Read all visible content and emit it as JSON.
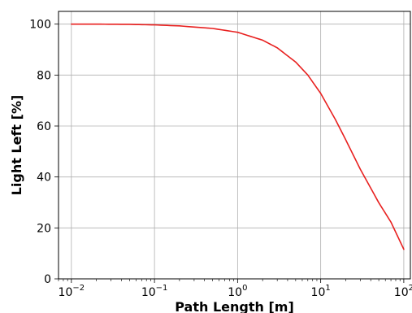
{
  "chart_data": {
    "type": "line",
    "title": "",
    "xlabel": "Path Length [m]",
    "ylabel": "Light Left [%]",
    "x_scale": "log",
    "xlim": [
      0.007,
      120
    ],
    "ylim": [
      0,
      105
    ],
    "grid": true,
    "legend": "none",
    "x_ticks": [
      {
        "value": 0.01,
        "base": "10",
        "exp": "−2"
      },
      {
        "value": 0.1,
        "base": "10",
        "exp": "−1"
      },
      {
        "value": 1,
        "base": "10",
        "exp": "0"
      },
      {
        "value": 10,
        "base": "10",
        "exp": "1"
      },
      {
        "value": 100,
        "base": "10",
        "exp": "2"
      }
    ],
    "y_ticks": [
      {
        "value": 0,
        "label": "0"
      },
      {
        "value": 20,
        "label": "20"
      },
      {
        "value": 40,
        "label": "40"
      },
      {
        "value": 60,
        "label": "60"
      },
      {
        "value": 80,
        "label": "80"
      },
      {
        "value": 100,
        "label": "100"
      }
    ],
    "series": [
      {
        "color": "#e8201f",
        "x": [
          0.01,
          0.02,
          0.05,
          0.1,
          0.2,
          0.5,
          1,
          2,
          3,
          5,
          7,
          10,
          15,
          20,
          30,
          50,
          70,
          100
        ],
        "y": [
          100,
          100,
          99.9,
          99.7,
          99.3,
          98.3,
          96.8,
          93.7,
          90.7,
          85.1,
          80.0,
          72.8,
          62.6,
          54.6,
          43.0,
          29.9,
          22.3,
          11.6
        ]
      }
    ]
  }
}
